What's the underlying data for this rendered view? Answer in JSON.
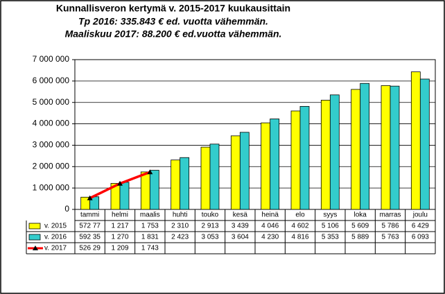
{
  "chart_data": {
    "type": "bar",
    "title": "Kunnallisveron kertymä v. 2015-2017 kuukausittain",
    "subtitles": [
      {
        "text": "Tp 2016: 335.843 € ed. vuotta vähemmän.",
        "color": "#7030a0"
      },
      {
        "text": "Maaliskuu  2017: 88.200 € ed.vuotta vähemmän.",
        "color": "#ff0000"
      }
    ],
    "categories": [
      "tammi",
      "helmi",
      "maalis",
      "huhti",
      "touko",
      "kesä",
      "heinä",
      "elo",
      "syys",
      "loka",
      "marras",
      "joulu"
    ],
    "series": [
      {
        "name": "v. 2015",
        "type": "bar",
        "color": "#ffff00",
        "values": [
          572770,
          1217000,
          1753000,
          2310000,
          2913000,
          3439000,
          4046000,
          4602000,
          5106000,
          5609000,
          5786000,
          6429000
        ],
        "value_labels": [
          "572 77",
          "1 217",
          "1 753",
          "2 310",
          "2 913",
          "3 439",
          "4 046",
          "4 602",
          "5 106",
          "5 609",
          "5 786",
          "6 429"
        ]
      },
      {
        "name": "v. 2016",
        "type": "bar",
        "color": "#33cccc",
        "values": [
          592350,
          1270000,
          1831000,
          2423000,
          3053000,
          3604000,
          4230000,
          4816000,
          5353000,
          5889000,
          5763000,
          6093000
        ],
        "value_labels": [
          "592 35",
          "1 270",
          "1 831",
          "2 423",
          "3 053",
          "3 604",
          "4 230",
          "4 816",
          "5 353",
          "5 889",
          "5 763",
          "6 093"
        ]
      },
      {
        "name": "v. 2017",
        "type": "line",
        "color": "#ff0000",
        "marker_color": "#000000",
        "values": [
          526290,
          1209000,
          1743000,
          null,
          null,
          null,
          null,
          null,
          null,
          null,
          null,
          null
        ],
        "value_labels": [
          "526 29",
          "1 209",
          "1 743",
          null,
          null,
          null,
          null,
          null,
          null,
          null,
          null,
          null
        ]
      }
    ],
    "ylim": [
      0,
      7000000
    ],
    "yticks": [
      0,
      {
        "value": 1000000,
        "label": "1 000 000"
      },
      {
        "value": 2000000,
        "label": "2 000 000"
      },
      {
        "value": 3000000,
        "label": "3 000 000"
      },
      {
        "value": 4000000,
        "label": "4 000 000"
      },
      {
        "value": 5000000,
        "label": "5 000 000"
      },
      {
        "value": 6000000,
        "label": "6 000 000"
      },
      {
        "value": 7000000,
        "label": "7 000 000"
      }
    ],
    "grid": true
  }
}
